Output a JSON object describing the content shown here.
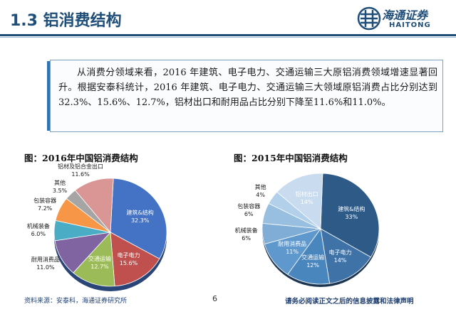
{
  "header": {
    "title": "1.3 铝消费结构",
    "logo_cn": "海通证券",
    "logo_en": "HAITONG"
  },
  "summary": {
    "text": "从消费分领域来看，2016 年建筑、电子电力、交通运输三大原铝消费领域增速显著回升。根据安泰科统计，2016 年建筑、电子电力、交通运输三大领域原铝消费占比分别达到32.3%、15.6%、12.7%，铝材出口和耐用品占比分别下降至11.6%和11.0%。"
  },
  "footer": {
    "source": "资料来源：安泰科，海通证券研究所",
    "page": "6",
    "disclaimer": "请务必阅读正文之后的信息披露和法律声明"
  },
  "chart_data": [
    {
      "type": "pie",
      "title": "图：2016年中国铝消费结构",
      "slices": [
        {
          "label": "建筑&结构",
          "value": 32.3,
          "display": "32.3%",
          "color": "#4472c4"
        },
        {
          "label": "电子电力",
          "value": 15.6,
          "display": "15.6%",
          "color": "#c0504d"
        },
        {
          "label": "交通运输",
          "value": 12.7,
          "display": "12.7%",
          "color": "#9bbb59"
        },
        {
          "label": "耐用消费品",
          "value": 11.0,
          "display": "11.0%",
          "color": "#8064a2"
        },
        {
          "label": "机械装备",
          "value": 6.0,
          "display": "6.0%",
          "color": "#4bacc6"
        },
        {
          "label": "包装容器",
          "value": 7.2,
          "display": "7.2%",
          "color": "#f79646"
        },
        {
          "label": "其他",
          "value": 3.5,
          "display": "3.5%",
          "color": "#a5a5a5"
        },
        {
          "label": "铝材及铝合金出口",
          "value": 11.6,
          "display": "11.6%",
          "color": "#d99694"
        }
      ]
    },
    {
      "type": "pie",
      "title": "图：2015年中国铝消费结构",
      "slices": [
        {
          "label": "建筑&结构",
          "value": 33,
          "display": "33%",
          "color": "#2e5a88"
        },
        {
          "label": "电子电力",
          "value": 14,
          "display": "14%",
          "color": "#3f73a8"
        },
        {
          "label": "交通运输",
          "value": 12,
          "display": "12%",
          "color": "#4a86be"
        },
        {
          "label": "耐用消费品",
          "value": 11,
          "display": "11%",
          "color": "#5f98cc"
        },
        {
          "label": "机械装备",
          "value": 6,
          "display": "6%",
          "color": "#7fadd6"
        },
        {
          "label": "包装容器",
          "value": 6,
          "display": "6%",
          "color": "#98bfe0"
        },
        {
          "label": "其他",
          "value": 4,
          "display": "4%",
          "color": "#b3d0ea"
        },
        {
          "label": "铝材出口",
          "value": 14,
          "display": "14%",
          "color": "#c9dcef"
        }
      ]
    }
  ]
}
